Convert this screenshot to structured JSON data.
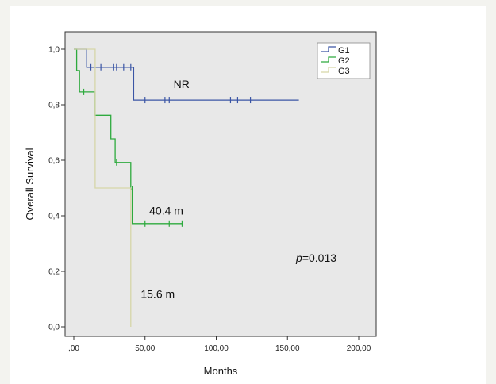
{
  "chart_data": {
    "type": "line",
    "subtype": "kaplan-meier-step",
    "title": "",
    "xlabel": "Months",
    "ylabel": "Overall Survival",
    "xlim": [
      0,
      200
    ],
    "ylim": [
      0,
      1
    ],
    "x_ticks": [
      {
        "value": 0,
        "label": ",00"
      },
      {
        "value": 50,
        "label": "50,00"
      },
      {
        "value": 100,
        "label": "100,00"
      },
      {
        "value": 150,
        "label": "150,00"
      },
      {
        "value": 200,
        "label": "200,00"
      }
    ],
    "y_ticks": [
      {
        "value": 0,
        "label": "0,0"
      },
      {
        "value": 0.2,
        "label": "0,2"
      },
      {
        "value": 0.4,
        "label": "0,4"
      },
      {
        "value": 0.6,
        "label": "0,6"
      },
      {
        "value": 0.8,
        "label": "0,8"
      },
      {
        "value": 1.0,
        "label": "1,0"
      }
    ],
    "grid": false,
    "legend_position": "top-right",
    "plot_background": "#e8e8e8",
    "series": [
      {
        "name": "G1",
        "color": "#3a55a5",
        "steps": [
          [
            0,
            1.0
          ],
          [
            9,
            1.0
          ],
          [
            9,
            0.935
          ],
          [
            42,
            0.935
          ],
          [
            42,
            0.817
          ],
          [
            158,
            0.817
          ]
        ],
        "censored": [
          [
            12,
            0.935
          ],
          [
            19,
            0.935
          ],
          [
            28,
            0.935
          ],
          [
            30,
            0.935
          ],
          [
            35,
            0.935
          ],
          [
            40,
            0.935
          ],
          [
            50,
            0.817
          ],
          [
            64,
            0.817
          ],
          [
            67,
            0.817
          ],
          [
            110,
            0.817
          ],
          [
            115,
            0.817
          ],
          [
            124,
            0.817
          ]
        ]
      },
      {
        "name": "G2",
        "color": "#2eaa3e",
        "steps": [
          [
            0,
            1.0
          ],
          [
            2,
            1.0
          ],
          [
            2,
            0.923
          ],
          [
            4,
            0.923
          ],
          [
            4,
            0.846
          ],
          [
            15,
            0.846
          ],
          [
            15,
            0.762
          ],
          [
            26,
            0.762
          ],
          [
            26,
            0.677
          ],
          [
            29,
            0.677
          ],
          [
            29,
            0.592
          ],
          [
            40,
            0.592
          ],
          [
            40,
            0.497
          ],
          [
            41,
            0.497
          ],
          [
            41,
            0.372
          ],
          [
            76,
            0.372
          ]
        ],
        "censored": [
          [
            7,
            0.846
          ],
          [
            30,
            0.592
          ],
          [
            41,
            0.497
          ],
          [
            50,
            0.372
          ],
          [
            67,
            0.372
          ],
          [
            76,
            0.372
          ]
        ]
      },
      {
        "name": "G3",
        "color": "#d6d6a8",
        "steps": [
          [
            0,
            1.0
          ],
          [
            15,
            1.0
          ],
          [
            15,
            0.5
          ],
          [
            40,
            0.5
          ],
          [
            40,
            0.0
          ]
        ],
        "censored": []
      }
    ],
    "annotations": [
      {
        "text": "NR",
        "x": 70,
        "y": 0.86
      },
      {
        "text": "40.4 m",
        "x": 53,
        "y": 0.405
      },
      {
        "text": "15.6 m",
        "x": 47,
        "y": 0.105
      }
    ],
    "p_value": {
      "prefix": "p",
      "value": "=0.013",
      "x": 156,
      "y": 0.235
    }
  }
}
